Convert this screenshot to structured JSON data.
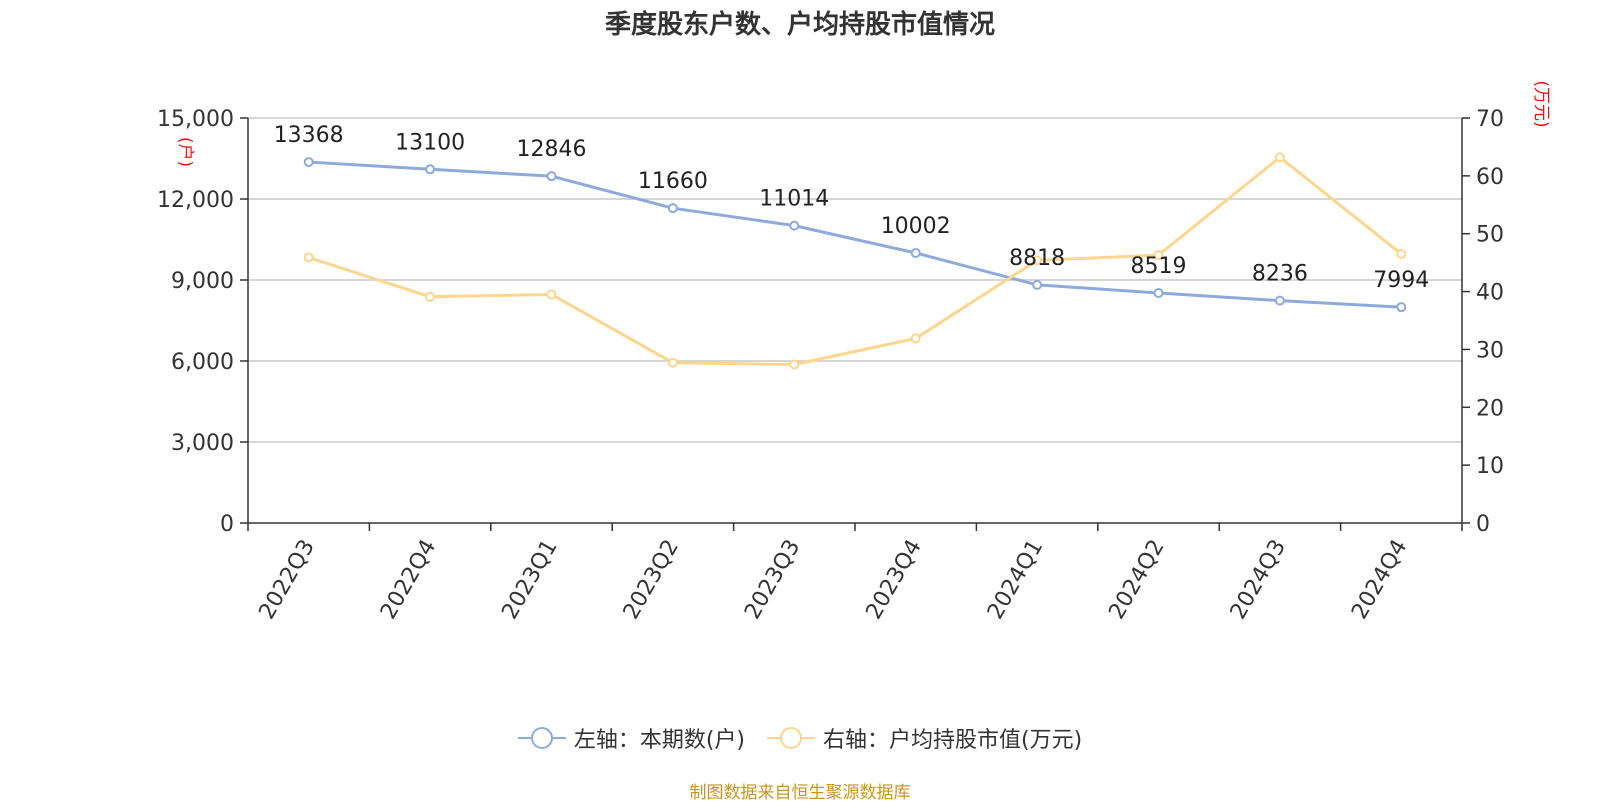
{
  "chart_data": {
    "type": "line",
    "title": "季度股东户数、户均持股市值情况",
    "categories": [
      "2022Q3",
      "2022Q4",
      "2023Q1",
      "2023Q2",
      "2023Q3",
      "2023Q4",
      "2024Q1",
      "2024Q2",
      "2024Q3",
      "2024Q4"
    ],
    "left_axis": {
      "unit": "(户)",
      "ylim": [
        0,
        15000
      ],
      "ticks": [
        "0",
        "3,000",
        "6,000",
        "9,000",
        "12,000",
        "15,000"
      ]
    },
    "right_axis": {
      "unit": "(万元)",
      "ylim": [
        0,
        70
      ],
      "ticks": [
        "0",
        "10",
        "20",
        "30",
        "40",
        "50",
        "60",
        "70"
      ]
    },
    "grid": true,
    "legend_position": "bottom",
    "series": [
      {
        "name": "左轴：本期数(户)",
        "axis": "left",
        "color": "#8eaadc",
        "values": [
          13368,
          13100,
          12846,
          11660,
          11014,
          10002,
          8818,
          8519,
          8236,
          7994
        ],
        "labels": [
          "13368",
          "13100",
          "12846",
          "11660",
          "11014",
          "10002",
          "8818",
          "8519",
          "8236",
          "7994"
        ]
      },
      {
        "name": "右轴：户均持股市值(万元)",
        "axis": "right",
        "color": "#fcd68e",
        "values": [
          45.9,
          39.1,
          39.5,
          27.7,
          27.4,
          31.9,
          45.4,
          46.3,
          63.2,
          46.5
        ]
      }
    ]
  },
  "source": "制图数据来自恒生聚源数据库"
}
